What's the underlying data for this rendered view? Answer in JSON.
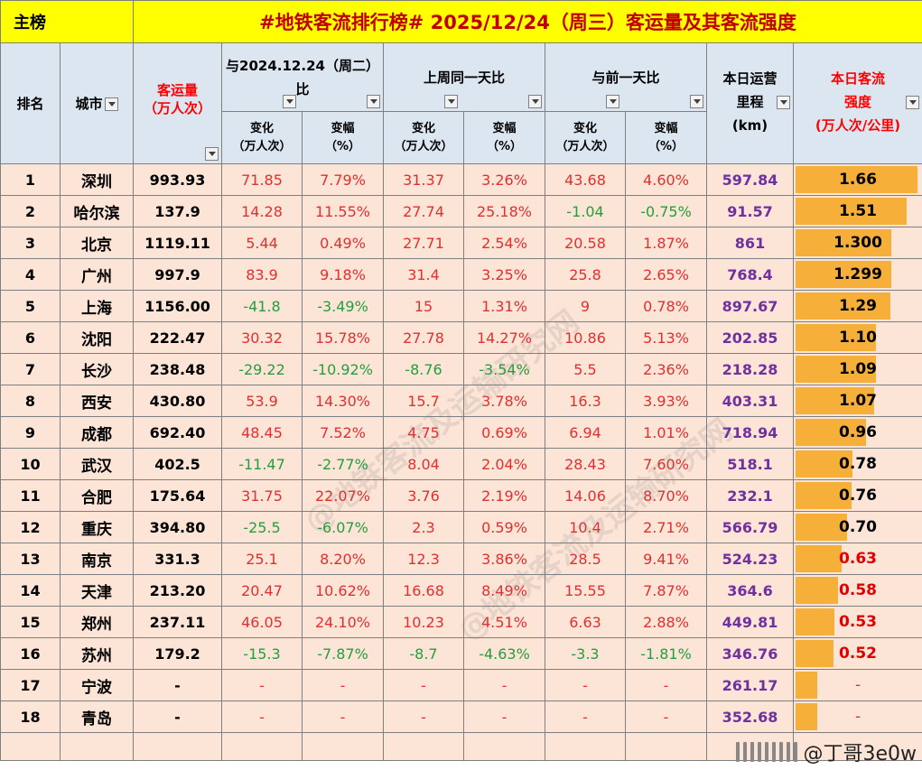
{
  "title": {
    "main": "主榜",
    "headline": "#地铁客流排行榜# 2025/12/24（周三）客运量及其客流强度"
  },
  "headers": {
    "rank": "排名",
    "city": "城市",
    "volume_line1": "客运量",
    "volume_line2": "（万人次）",
    "yoy": "与2024.12.24（周二）比",
    "wow": "上周同一天比",
    "dod": "与前一天比",
    "mileage_line1": "本日运营",
    "mileage_line2": "里程",
    "mileage_line3": "(km)",
    "intensity_line1": "本日客流",
    "intensity_line2": "强度",
    "intensity_line3": "(万人次/公里)",
    "change_line1": "变化",
    "change_line2": "（万人次）",
    "pct_line1": "变幅",
    "pct_line2": "（%）"
  },
  "rows": [
    {
      "rank": "1",
      "city": "深圳",
      "volume": "993.93",
      "yoy_change": "71.85",
      "yoy_pct": "7.79%",
      "wow_change": "31.37",
      "wow_pct": "3.26%",
      "dod_change": "43.68",
      "dod_pct": "4.60%",
      "mileage": "597.84",
      "intensity": "1.66",
      "bar": 1.66
    },
    {
      "rank": "2",
      "city": "哈尔滨",
      "volume": "137.9",
      "yoy_change": "14.28",
      "yoy_pct": "11.55%",
      "wow_change": "27.74",
      "wow_pct": "25.18%",
      "dod_change": "-1.04",
      "dod_pct": "-0.75%",
      "mileage": "91.57",
      "intensity": "1.51",
      "bar": 1.51
    },
    {
      "rank": "3",
      "city": "北京",
      "volume": "1119.11",
      "yoy_change": "5.44",
      "yoy_pct": "0.49%",
      "wow_change": "27.71",
      "wow_pct": "2.54%",
      "dod_change": "20.58",
      "dod_pct": "1.87%",
      "mileage": "861",
      "intensity": "1.300",
      "bar": 1.3
    },
    {
      "rank": "4",
      "city": "广州",
      "volume": "997.9",
      "yoy_change": "83.9",
      "yoy_pct": "9.18%",
      "wow_change": "31.4",
      "wow_pct": "3.25%",
      "dod_change": "25.8",
      "dod_pct": "2.65%",
      "mileage": "768.4",
      "intensity": "1.299",
      "bar": 1.299
    },
    {
      "rank": "5",
      "city": "上海",
      "volume": "1156.00",
      "yoy_change": "-41.8",
      "yoy_pct": "-3.49%",
      "wow_change": "15",
      "wow_pct": "1.31%",
      "dod_change": "9",
      "dod_pct": "0.78%",
      "mileage": "897.67",
      "intensity": "1.29",
      "bar": 1.29
    },
    {
      "rank": "6",
      "city": "沈阳",
      "volume": "222.47",
      "yoy_change": "30.32",
      "yoy_pct": "15.78%",
      "wow_change": "27.78",
      "wow_pct": "14.27%",
      "dod_change": "10.86",
      "dod_pct": "5.13%",
      "mileage": "202.85",
      "intensity": "1.10",
      "bar": 1.1
    },
    {
      "rank": "7",
      "city": "长沙",
      "volume": "238.48",
      "yoy_change": "-29.22",
      "yoy_pct": "-10.92%",
      "wow_change": "-8.76",
      "wow_pct": "-3.54%",
      "dod_change": "5.5",
      "dod_pct": "2.36%",
      "mileage": "218.28",
      "intensity": "1.09",
      "bar": 1.09
    },
    {
      "rank": "8",
      "city": "西安",
      "volume": "430.80",
      "yoy_change": "53.9",
      "yoy_pct": "14.30%",
      "wow_change": "15.7",
      "wow_pct": "3.78%",
      "dod_change": "16.3",
      "dod_pct": "3.93%",
      "mileage": "403.31",
      "intensity": "1.07",
      "bar": 1.07
    },
    {
      "rank": "9",
      "city": "成都",
      "volume": "692.40",
      "yoy_change": "48.45",
      "yoy_pct": "7.52%",
      "wow_change": "4.75",
      "wow_pct": "0.69%",
      "dod_change": "6.94",
      "dod_pct": "1.01%",
      "mileage": "718.94",
      "intensity": "0.96",
      "bar": 0.96
    },
    {
      "rank": "10",
      "city": "武汉",
      "volume": "402.5",
      "yoy_change": "-11.47",
      "yoy_pct": "-2.77%",
      "wow_change": "8.04",
      "wow_pct": "2.04%",
      "dod_change": "28.43",
      "dod_pct": "7.60%",
      "mileage": "518.1",
      "intensity": "0.78",
      "bar": 0.78
    },
    {
      "rank": "11",
      "city": "合肥",
      "volume": "175.64",
      "yoy_change": "31.75",
      "yoy_pct": "22.07%",
      "wow_change": "3.76",
      "wow_pct": "2.19%",
      "dod_change": "14.06",
      "dod_pct": "8.70%",
      "mileage": "232.1",
      "intensity": "0.76",
      "bar": 0.76
    },
    {
      "rank": "12",
      "city": "重庆",
      "volume": "394.80",
      "yoy_change": "-25.5",
      "yoy_pct": "-6.07%",
      "wow_change": "2.3",
      "wow_pct": "0.59%",
      "dod_change": "10.4",
      "dod_pct": "2.71%",
      "mileage": "566.79",
      "intensity": "0.70",
      "bar": 0.7
    },
    {
      "rank": "13",
      "city": "南京",
      "volume": "331.3",
      "yoy_change": "25.1",
      "yoy_pct": "8.20%",
      "wow_change": "12.3",
      "wow_pct": "3.86%",
      "dod_change": "28.5",
      "dod_pct": "9.41%",
      "mileage": "524.23",
      "intensity": "0.63",
      "bar": 0.63
    },
    {
      "rank": "14",
      "city": "天津",
      "volume": "213.20",
      "yoy_change": "20.47",
      "yoy_pct": "10.62%",
      "wow_change": "16.68",
      "wow_pct": "8.49%",
      "dod_change": "15.55",
      "dod_pct": "7.87%",
      "mileage": "364.6",
      "intensity": "0.58",
      "bar": 0.58
    },
    {
      "rank": "15",
      "city": "郑州",
      "volume": "237.11",
      "yoy_change": "46.05",
      "yoy_pct": "24.10%",
      "wow_change": "10.23",
      "wow_pct": "4.51%",
      "dod_change": "6.63",
      "dod_pct": "2.88%",
      "mileage": "449.81",
      "intensity": "0.53",
      "bar": 0.53
    },
    {
      "rank": "16",
      "city": "苏州",
      "volume": "179.2",
      "yoy_change": "-15.3",
      "yoy_pct": "-7.87%",
      "wow_change": "-8.7",
      "wow_pct": "-4.63%",
      "dod_change": "-3.3",
      "dod_pct": "-1.81%",
      "mileage": "346.76",
      "intensity": "0.52",
      "bar": 0.52
    },
    {
      "rank": "17",
      "city": "宁波",
      "volume": "-",
      "yoy_change": "-",
      "yoy_pct": "-",
      "wow_change": "-",
      "wow_pct": "-",
      "dod_change": "-",
      "dod_pct": "-",
      "mileage": "261.17",
      "intensity": "-",
      "bar": 0.3
    },
    {
      "rank": "18",
      "city": "青岛",
      "volume": "-",
      "yoy_change": "-",
      "yoy_pct": "-",
      "wow_change": "-",
      "wow_pct": "-",
      "dod_change": "-",
      "dod_pct": "-",
      "mileage": "352.68",
      "intensity": "-",
      "bar": 0.3
    }
  ],
  "watermark": "@地铁客流及运输研究网",
  "footer": {
    "username": "@丁哥3e0w",
    "watermark_text": "运输研究网"
  },
  "colors": {
    "title_bg": "#ffff00",
    "header_bg": "#dce6f1",
    "row_bg": "#fce4d6",
    "positive": "#e03030",
    "negative": "#22a03c",
    "mileage": "#7030a0",
    "bar": "#f6b03a"
  }
}
